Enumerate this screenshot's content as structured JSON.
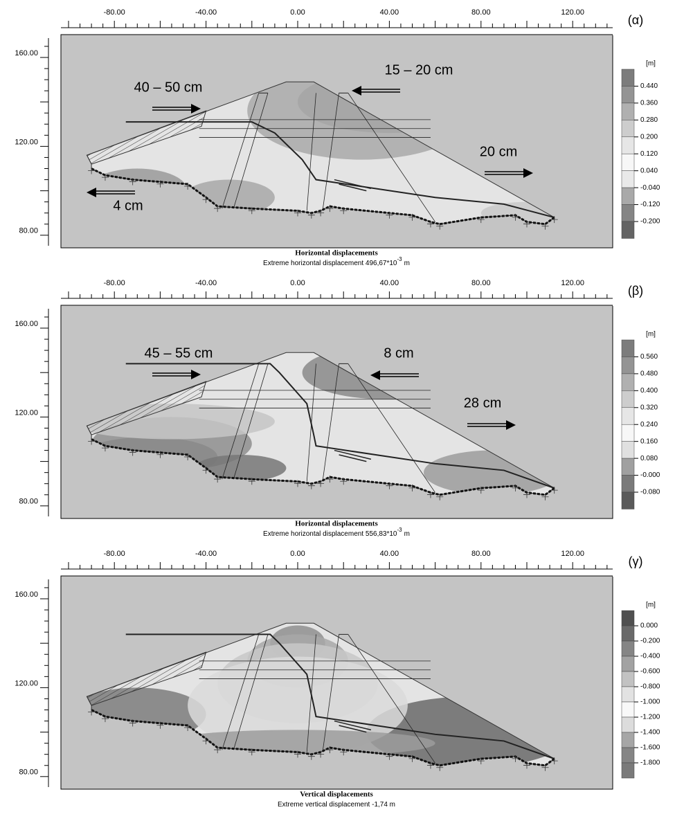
{
  "panels": [
    {
      "label": "(α)",
      "x_ticks": [
        "-80.00",
        "-40.00",
        "0.00",
        "40.00",
        "80.00",
        "120.00"
      ],
      "y_ticks": [
        "160.00",
        "120.00",
        "80.00"
      ],
      "legend_unit": "[m]",
      "legend": [
        "0.440",
        "0.360",
        "0.280",
        "0.200",
        "0.120",
        "0.040",
        "-0.040",
        "-0.120",
        "-0.200"
      ],
      "caption_title": "Horizontal displacements",
      "caption_text": "Extreme horizontal displacement 496,67*10",
      "caption_exponent": "-3",
      "caption_unit": "m",
      "annotations": [
        "40 – 50 cm",
        "15 – 20 cm",
        "20 cm",
        "4 cm"
      ]
    },
    {
      "label": "(β)",
      "x_ticks": [
        "-80.00",
        "-40.00",
        "0.00",
        "40.00",
        "80.00",
        "120.00"
      ],
      "y_ticks": [
        "160.00",
        "120.00",
        "80.00"
      ],
      "legend_unit": "[m]",
      "legend": [
        "0.560",
        "0.480",
        "0.400",
        "0.320",
        "0.240",
        "0.160",
        "0.080",
        "-0.000",
        "-0.080"
      ],
      "caption_title": "Horizontal displacements",
      "caption_text": "Extreme horizontal displacement 556,83*10",
      "caption_exponent": "-3",
      "caption_unit": "m",
      "annotations": [
        "45 – 55 cm",
        "8 cm",
        "28 cm"
      ]
    },
    {
      "label": "(γ)",
      "x_ticks": [
        "-80.00",
        "-40.00",
        "0.00",
        "40.00",
        "80.00",
        "120.00"
      ],
      "y_ticks": [
        "160.00",
        "120.00",
        "80.00"
      ],
      "legend_unit": "[m]",
      "legend": [
        "0.000",
        "-0.200",
        "-0.400",
        "-0.600",
        "-0.800",
        "-1.000",
        "-1.200",
        "-1.400",
        "-1.600",
        "-1.800"
      ],
      "caption_title": "Vertical displacements",
      "caption_text": "Extreme vertical displacement -1,74 m"
    }
  ]
}
